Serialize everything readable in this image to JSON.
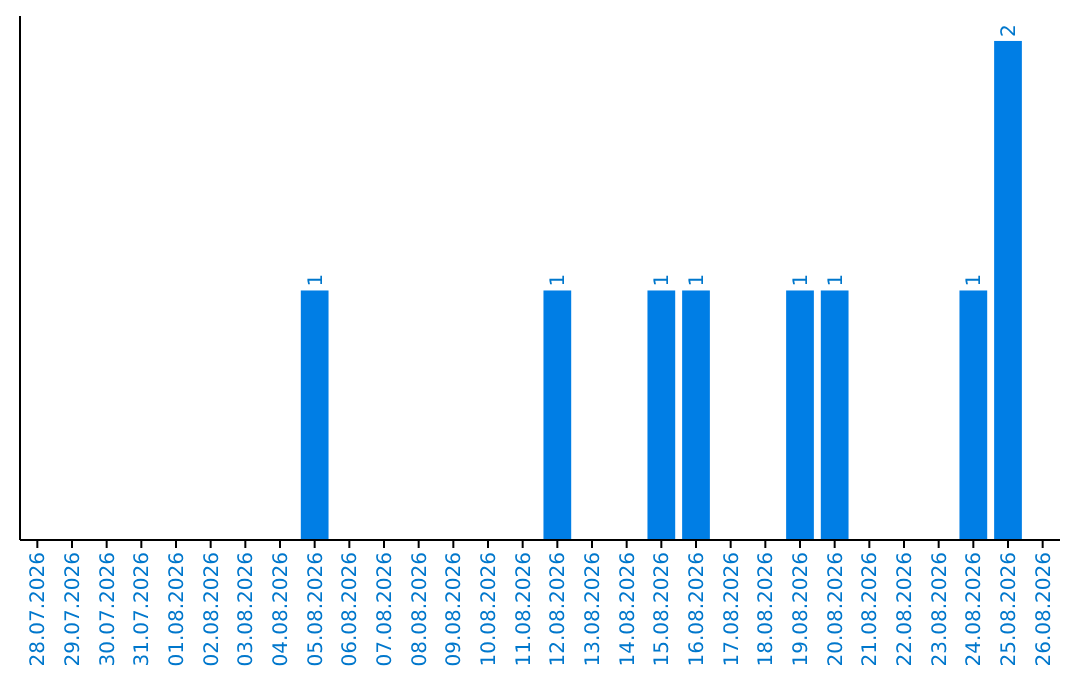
{
  "chart_data": {
    "type": "bar",
    "categories": [
      "28.07.2026",
      "29.07.2026",
      "30.07.2026",
      "31.07.2026",
      "01.08.2026",
      "02.08.2026",
      "03.08.2026",
      "04.08.2026",
      "05.08.2026",
      "06.08.2026",
      "07.08.2026",
      "08.08.2026",
      "09.08.2026",
      "10.08.2026",
      "11.08.2026",
      "12.08.2026",
      "13.08.2026",
      "14.08.2026",
      "15.08.2026",
      "16.08.2026",
      "17.08.2026",
      "18.08.2026",
      "19.08.2026",
      "20.08.2026",
      "21.08.2026",
      "22.08.2026",
      "23.08.2026",
      "24.08.2026",
      "25.08.2026",
      "26.08.2026"
    ],
    "values": [
      0,
      0,
      0,
      0,
      0,
      0,
      0,
      0,
      1,
      0,
      0,
      0,
      0,
      0,
      0,
      1,
      0,
      0,
      1,
      1,
      0,
      0,
      1,
      1,
      0,
      0,
      0,
      1,
      2,
      0
    ],
    "value_labels": [
      null,
      null,
      null,
      null,
      null,
      null,
      null,
      null,
      "1",
      null,
      null,
      null,
      null,
      null,
      null,
      "1",
      null,
      null,
      "1",
      "1",
      null,
      null,
      "1",
      "1",
      null,
      null,
      null,
      "1",
      "2",
      null
    ],
    "color": "#007ee5",
    "ylim": [
      0,
      2.1
    ],
    "tick_labels": "x"
  }
}
